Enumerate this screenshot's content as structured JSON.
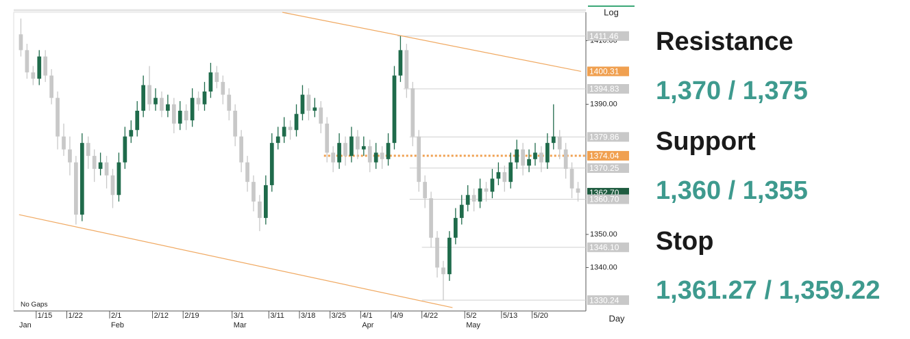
{
  "chart_data": {
    "type": "candlestick",
    "log": true,
    "log_label": "Log",
    "gaps_label": "No Gaps",
    "period_label": "Day",
    "ylim": [
      1327,
      1419
    ],
    "yticks": [
      {
        "value": 1410,
        "label": "1410.00"
      },
      {
        "value": 1390,
        "label": "1390.00"
      },
      {
        "value": 1350,
        "label": "1350.00"
      },
      {
        "value": 1340,
        "label": "1340.00"
      }
    ],
    "xlim": [
      0,
      92
    ],
    "xticks": [
      {
        "value": 3,
        "label": "1/15"
      },
      {
        "value": 8,
        "label": "1/22"
      },
      {
        "value": 15,
        "label": "2/1"
      },
      {
        "value": 22,
        "label": "2/12"
      },
      {
        "value": 27,
        "label": "2/19"
      },
      {
        "value": 35,
        "label": "3/1"
      },
      {
        "value": 41,
        "label": "3/11"
      },
      {
        "value": 46,
        "label": "3/18"
      },
      {
        "value": 51,
        "label": "3/25"
      },
      {
        "value": 56,
        "label": "4/1"
      },
      {
        "value": 61,
        "label": "4/9"
      },
      {
        "value": 66,
        "label": "4/22"
      },
      {
        "value": 73,
        "label": "5/2"
      },
      {
        "value": 79,
        "label": "5/13"
      },
      {
        "value": 84,
        "label": "5/20"
      }
    ],
    "months": [
      {
        "value": 0,
        "label": "Jan"
      },
      {
        "value": 15,
        "label": "Feb"
      },
      {
        "value": 35,
        "label": "Mar"
      },
      {
        "value": 56,
        "label": "Apr"
      },
      {
        "value": 73,
        "label": "May"
      }
    ],
    "up_color": "#1f6b4b",
    "down_color": "#c8c8c8",
    "candles": [
      [
        1412,
        1417,
        1405,
        1407
      ],
      [
        1407,
        1409,
        1398,
        1400
      ],
      [
        1400,
        1402,
        1396,
        1398
      ],
      [
        1398,
        1407,
        1396,
        1405
      ],
      [
        1405,
        1407,
        1397,
        1399
      ],
      [
        1399,
        1401,
        1390,
        1392
      ],
      [
        1392,
        1394,
        1376,
        1380
      ],
      [
        1380,
        1384,
        1374,
        1376
      ],
      [
        1376,
        1380,
        1368,
        1372
      ],
      [
        1372,
        1374,
        1353,
        1356
      ],
      [
        1356,
        1381,
        1354,
        1378
      ],
      [
        1378,
        1380,
        1370,
        1374
      ],
      [
        1374,
        1376,
        1366,
        1370
      ],
      [
        1370,
        1375,
        1368,
        1372
      ],
      [
        1372,
        1374,
        1364,
        1368
      ],
      [
        1368,
        1370,
        1358,
        1362
      ],
      [
        1362,
        1375,
        1360,
        1372
      ],
      [
        1372,
        1383,
        1370,
        1380
      ],
      [
        1380,
        1385,
        1378,
        1382
      ],
      [
        1382,
        1391,
        1380,
        1388
      ],
      [
        1388,
        1399,
        1386,
        1396
      ],
      [
        1396,
        1402,
        1388,
        1390
      ],
      [
        1390,
        1395,
        1388,
        1392
      ],
      [
        1392,
        1394,
        1386,
        1388
      ],
      [
        1388,
        1393,
        1386,
        1390
      ],
      [
        1390,
        1392,
        1381,
        1384
      ],
      [
        1384,
        1391,
        1382,
        1388
      ],
      [
        1388,
        1390,
        1382,
        1385
      ],
      [
        1385,
        1395,
        1383,
        1392
      ],
      [
        1392,
        1394,
        1388,
        1390
      ],
      [
        1390,
        1397,
        1388,
        1394
      ],
      [
        1394,
        1403,
        1392,
        1400
      ],
      [
        1400,
        1402,
        1395,
        1397
      ],
      [
        1397,
        1399,
        1390,
        1393
      ],
      [
        1393,
        1395,
        1385,
        1388
      ],
      [
        1388,
        1390,
        1377,
        1380
      ],
      [
        1380,
        1382,
        1369,
        1372
      ],
      [
        1372,
        1374,
        1363,
        1366
      ],
      [
        1366,
        1368,
        1357,
        1360
      ],
      [
        1360,
        1362,
        1351,
        1355
      ],
      [
        1355,
        1368,
        1353,
        1365
      ],
      [
        1365,
        1381,
        1363,
        1378
      ],
      [
        1378,
        1383,
        1376,
        1380
      ],
      [
        1380,
        1386,
        1378,
        1383
      ],
      [
        1383,
        1385,
        1379,
        1382
      ],
      [
        1382,
        1390,
        1380,
        1387
      ],
      [
        1387,
        1396,
        1385,
        1393
      ],
      [
        1393,
        1395,
        1385,
        1388
      ],
      [
        1388,
        1392,
        1386,
        1389
      ],
      [
        1389,
        1391,
        1381,
        1384
      ],
      [
        1384,
        1386,
        1372,
        1375
      ],
      [
        1375,
        1377,
        1369,
        1372
      ],
      [
        1372,
        1381,
        1370,
        1378
      ],
      [
        1378,
        1380,
        1371,
        1374
      ],
      [
        1374,
        1383,
        1372,
        1380
      ],
      [
        1380,
        1382,
        1373,
        1376
      ],
      [
        1376,
        1380,
        1374,
        1377
      ],
      [
        1377,
        1379,
        1369,
        1372
      ],
      [
        1372,
        1378,
        1370,
        1375
      ],
      [
        1375,
        1377,
        1370,
        1373
      ],
      [
        1373,
        1381,
        1371,
        1378
      ],
      [
        1378,
        1402,
        1376,
        1399
      ],
      [
        1399,
        1411.46,
        1397,
        1407
      ],
      [
        1407,
        1409,
        1392,
        1395
      ],
      [
        1395,
        1397,
        1377,
        1380
      ],
      [
        1380,
        1382,
        1363,
        1366
      ],
      [
        1366,
        1368,
        1358,
        1361
      ],
      [
        1361,
        1363,
        1346,
        1349
      ],
      [
        1349,
        1351,
        1337,
        1340
      ],
      [
        1340,
        1342,
        1330.24,
        1338
      ],
      [
        1338,
        1351,
        1336,
        1349
      ],
      [
        1349,
        1358,
        1347,
        1355
      ],
      [
        1355,
        1362,
        1353,
        1359
      ],
      [
        1359,
        1365,
        1357,
        1362
      ],
      [
        1362,
        1364,
        1357,
        1360
      ],
      [
        1360,
        1367,
        1358,
        1364
      ],
      [
        1364,
        1366,
        1360,
        1363
      ],
      [
        1363,
        1370,
        1361,
        1367
      ],
      [
        1367,
        1372,
        1365,
        1369
      ],
      [
        1369,
        1371,
        1363,
        1366
      ],
      [
        1366,
        1375,
        1364,
        1372
      ],
      [
        1372,
        1379,
        1370,
        1376
      ],
      [
        1376,
        1378,
        1368,
        1371
      ],
      [
        1371,
        1376,
        1369,
        1373
      ],
      [
        1373,
        1378,
        1371,
        1375
      ],
      [
        1375,
        1377,
        1369,
        1372
      ],
      [
        1372,
        1381,
        1370,
        1378
      ],
      [
        1378,
        1390,
        1376,
        1380
      ],
      [
        1380,
        1382,
        1373,
        1376
      ],
      [
        1376,
        1378,
        1367,
        1370
      ],
      [
        1370,
        1372,
        1361,
        1364
      ],
      [
        1364,
        1366,
        1360,
        1362.7
      ]
    ],
    "trendlines": [
      {
        "color": "#f0a860",
        "points": [
          [
            42.7,
            1419
          ],
          [
            91.5,
            1400.31
          ]
        ]
      },
      {
        "color": "#f0a860",
        "points": [
          [
            -0.3,
            1356
          ],
          [
            70.5,
            1328
          ]
        ]
      }
    ],
    "levels": [
      {
        "value": 1411.46,
        "label": "1411.46",
        "from": 62,
        "color": "#c8c8c8",
        "dotted": false
      },
      {
        "value": 1400.31,
        "label": "1400.31",
        "from": 92,
        "color": "#f0a050",
        "dotted": false
      },
      {
        "value": 1394.83,
        "label": "1394.83",
        "from": 63,
        "color": "#c8c8c8",
        "dotted": false
      },
      {
        "value": 1379.86,
        "label": "1379.86",
        "from": 64,
        "color": "#c8c8c8",
        "dotted": false
      },
      {
        "value": 1374.04,
        "label": "1374.04",
        "from": 50,
        "color": "#f0a050",
        "dotted": true
      },
      {
        "value": 1370.25,
        "label": "1370.25",
        "from": 64,
        "color": "#c8c8c8",
        "dotted": false
      },
      {
        "value": 1362.7,
        "label": "1362.70",
        "from": 92,
        "color": "#1f5c40",
        "dotted": false
      },
      {
        "value": 1360.7,
        "label": "1360.70",
        "from": 64,
        "color": "#c8c8c8",
        "dotted": false
      },
      {
        "value": 1346.1,
        "label": "1346.10",
        "from": 66,
        "color": "#c8c8c8",
        "dotted": false
      },
      {
        "value": 1330.24,
        "label": "1330.24",
        "from": 66,
        "color": "#c8c8c8",
        "dotted": false
      }
    ]
  },
  "sidebar": {
    "resistance_title": "Resistance",
    "resistance": "1,370 / 1,375",
    "support_title": "Support",
    "support": "1,360 / 1,355",
    "stop_title": "Stop",
    "stop": "1,361.27 / 1,359.22"
  }
}
